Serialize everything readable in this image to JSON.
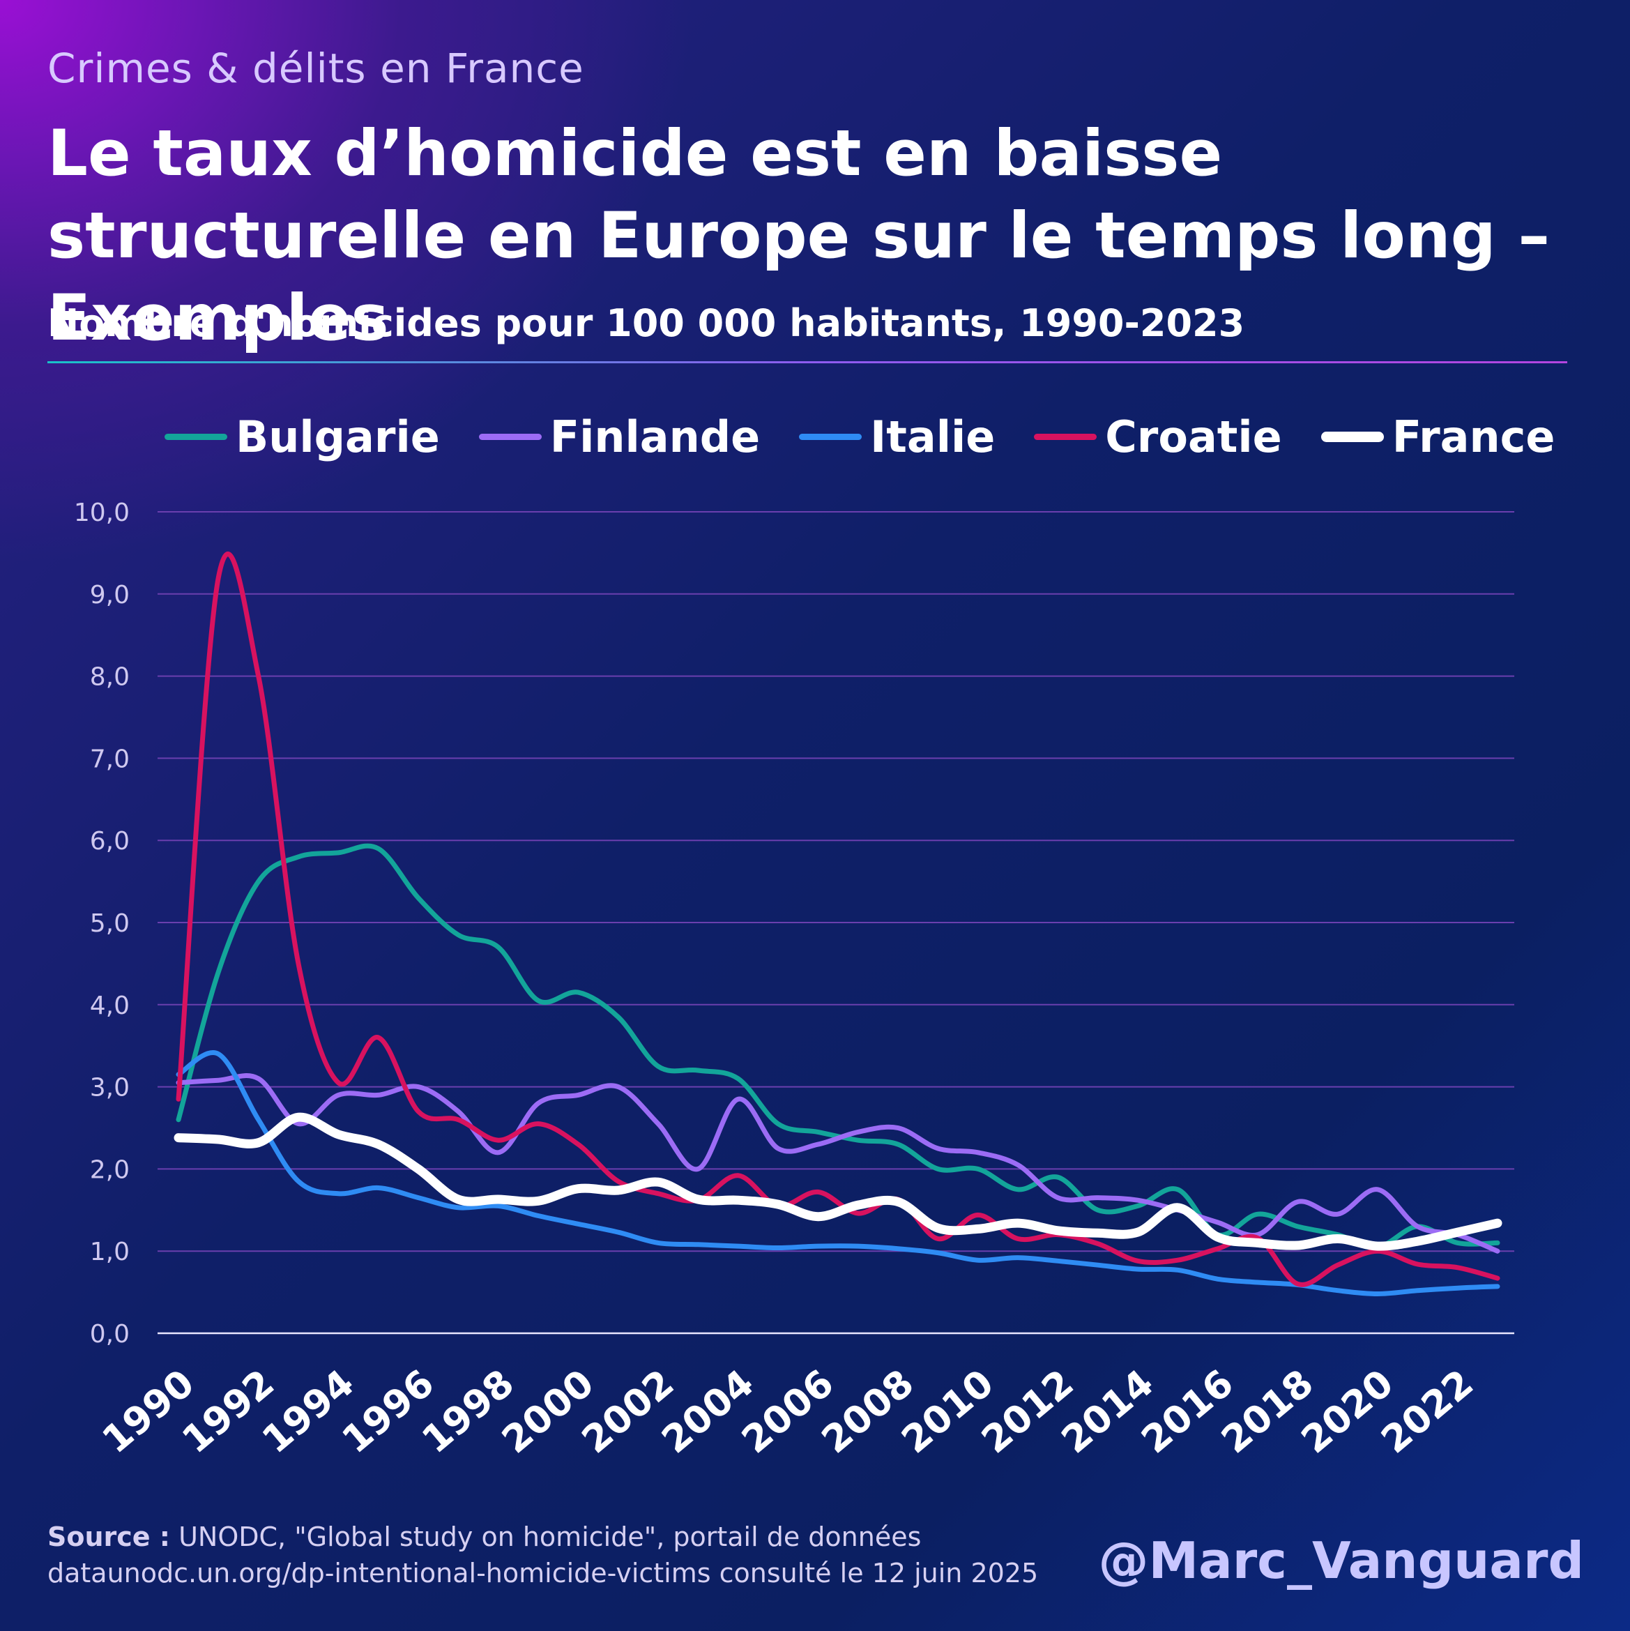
{
  "header": {
    "kicker": "Crimes & délits en France",
    "title": "Le taux d’homicide est en baisse structurelle en Europe sur le temps long – Exemples",
    "subtitle": "Nombre d'homicides pour 100 000 habitants, 1990-2023"
  },
  "footer": {
    "source_label": "Source :",
    "source_text": "UNODC, \"Global study on homicide\", portail de données",
    "source_line2": "dataunodc.un.org/dp-intentional-homicide-victims consulté le 12 juin 2025",
    "handle": "@Marc_Vanguard"
  },
  "chart_data": {
    "type": "line",
    "title": "Nombre d'homicides pour 100 000 habitants, 1990-2023",
    "xlabel": "",
    "ylabel": "",
    "ylim": [
      0,
      10
    ],
    "yticks": [
      "0,0",
      "1,0",
      "2,0",
      "3,0",
      "4,0",
      "5,0",
      "6,0",
      "7,0",
      "8,0",
      "9,0",
      "10,0"
    ],
    "xticks": [
      "1990",
      "1992",
      "1994",
      "1996",
      "1998",
      "2000",
      "2002",
      "2004",
      "2006",
      "2008",
      "2010",
      "2012",
      "2014",
      "2016",
      "2018",
      "2020",
      "2022"
    ],
    "grid": true,
    "legend_position": "top",
    "x": [
      1990,
      1991,
      1992,
      1993,
      1994,
      1995,
      1996,
      1997,
      1998,
      1999,
      2000,
      2001,
      2002,
      2003,
      2004,
      2005,
      2006,
      2007,
      2008,
      2009,
      2010,
      2011,
      2012,
      2013,
      2014,
      2015,
      2016,
      2017,
      2018,
      2019,
      2020,
      2021,
      2022,
      2023
    ],
    "series": [
      {
        "name": "Bulgarie",
        "color": "#13a59a",
        "width": 7,
        "values": [
          2.6,
          4.4,
          5.5,
          5.8,
          5.85,
          5.9,
          5.3,
          4.85,
          4.7,
          4.05,
          4.15,
          3.85,
          3.25,
          3.2,
          3.1,
          2.55,
          2.45,
          2.35,
          2.3,
          2.0,
          2.0,
          1.75,
          1.9,
          1.5,
          1.55,
          1.75,
          1.2,
          1.45,
          1.3,
          1.2,
          1.05,
          1.3,
          1.1,
          1.1
        ]
      },
      {
        "name": "Finlande",
        "color": "#9c6cf5",
        "width": 7,
        "values": [
          3.05,
          3.08,
          3.1,
          2.55,
          2.9,
          2.9,
          3.0,
          2.7,
          2.2,
          2.8,
          2.9,
          3.0,
          2.55,
          2.0,
          2.85,
          2.25,
          2.3,
          2.45,
          2.5,
          2.25,
          2.2,
          2.05,
          1.65,
          1.65,
          1.62,
          1.5,
          1.35,
          1.2,
          1.6,
          1.45,
          1.75,
          1.3,
          1.2,
          1.0
        ]
      },
      {
        "name": "Italie",
        "color": "#2f8cf4",
        "width": 7,
        "values": [
          3.15,
          3.4,
          2.6,
          1.85,
          1.7,
          1.77,
          1.65,
          1.53,
          1.55,
          1.43,
          1.33,
          1.23,
          1.1,
          1.08,
          1.06,
          1.04,
          1.06,
          1.06,
          1.03,
          0.98,
          0.89,
          0.92,
          0.88,
          0.83,
          0.78,
          0.77,
          0.66,
          0.62,
          0.59,
          0.52,
          0.48,
          0.52,
          0.55,
          0.57
        ]
      },
      {
        "name": "Croatie",
        "color": "#d8125f",
        "width": 7,
        "values": [
          2.85,
          9.2,
          8.0,
          4.5,
          3.05,
          3.6,
          2.7,
          2.6,
          2.35,
          2.55,
          2.3,
          1.85,
          1.7,
          1.62,
          1.92,
          1.55,
          1.72,
          1.46,
          1.63,
          1.15,
          1.44,
          1.15,
          1.2,
          1.09,
          0.88,
          0.89,
          1.03,
          1.16,
          0.6,
          0.83,
          1.0,
          0.84,
          0.8,
          0.67
        ]
      },
      {
        "name": "France",
        "color": "#ffffff",
        "width": 13,
        "values": [
          2.38,
          2.36,
          2.32,
          2.63,
          2.42,
          2.3,
          2.0,
          1.63,
          1.63,
          1.61,
          1.76,
          1.74,
          1.84,
          1.63,
          1.62,
          1.57,
          1.42,
          1.56,
          1.6,
          1.28,
          1.27,
          1.34,
          1.25,
          1.22,
          1.23,
          1.53,
          1.17,
          1.1,
          1.07,
          1.15,
          1.06,
          1.12,
          1.23,
          1.34
        ]
      }
    ]
  }
}
